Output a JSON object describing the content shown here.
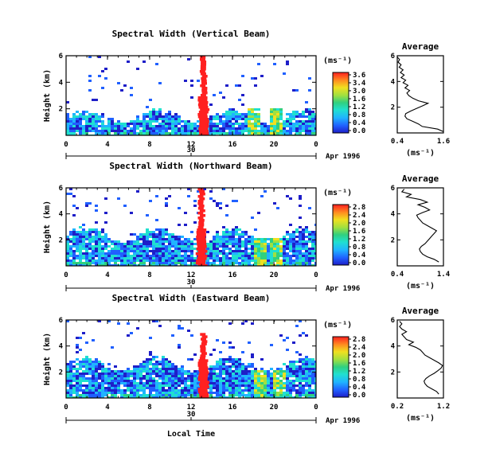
{
  "chart_data": [
    {
      "type": "heatmap",
      "title": "Spectral Width (Vertical Beam)",
      "ylabel": "Height (km)",
      "xlim": [
        0,
        24
      ],
      "ylim": [
        0,
        6
      ],
      "x_ticks": [
        "0",
        "4",
        "8",
        "12",
        "16",
        "20",
        "0"
      ],
      "y_ticks": [
        "2",
        "4",
        "6"
      ],
      "date_tick": "30",
      "date_label": "Apr 1996",
      "colorbar": {
        "unit": "(ms⁻¹)",
        "ticks": [
          "3.6",
          "3.4",
          "3.0",
          "1.6",
          "1.2",
          "0.8",
          "0.4",
          "0.0"
        ]
      },
      "features": {
        "band_top": 1.5,
        "spike_x": 13.2,
        "spike_top": 6.0,
        "secondary_plumes": [
          17.8,
          20.0
        ]
      },
      "profile": {
        "title": "Average",
        "xlabel": "(ms⁻¹)",
        "xlim": [
          0.4,
          1.6
        ],
        "x_ticks": [
          "0.4",
          "1.6"
        ],
        "y_ticks": [
          "2",
          "4",
          "6"
        ],
        "points": [
          [
            1.6,
            0.1
          ],
          [
            1.45,
            0.3
          ],
          [
            1.05,
            0.5
          ],
          [
            0.95,
            0.7
          ],
          [
            0.8,
            0.9
          ],
          [
            0.65,
            1.1
          ],
          [
            0.6,
            1.3
          ],
          [
            0.62,
            1.5
          ],
          [
            0.75,
            1.7
          ],
          [
            0.9,
            1.9
          ],
          [
            1.05,
            2.1
          ],
          [
            1.2,
            2.3
          ],
          [
            0.95,
            2.5
          ],
          [
            0.8,
            2.7
          ],
          [
            0.7,
            2.9
          ],
          [
            0.65,
            3.1
          ],
          [
            0.72,
            3.3
          ],
          [
            0.6,
            3.5
          ],
          [
            0.68,
            3.7
          ],
          [
            0.55,
            3.9
          ],
          [
            0.62,
            4.1
          ],
          [
            0.5,
            4.3
          ],
          [
            0.58,
            4.5
          ],
          [
            0.48,
            4.7
          ],
          [
            0.55,
            4.9
          ],
          [
            0.45,
            5.1
          ],
          [
            0.5,
            5.3
          ],
          [
            0.42,
            5.5
          ],
          [
            0.46,
            5.7
          ],
          [
            0.4,
            5.9
          ]
        ]
      }
    },
    {
      "type": "heatmap",
      "title": "Spectral Width (Northward Beam)",
      "ylabel": "Height (km)",
      "xlim": [
        0,
        24
      ],
      "ylim": [
        0,
        6
      ],
      "x_ticks": [
        "0",
        "4",
        "8",
        "12",
        "16",
        "20",
        "0"
      ],
      "y_ticks": [
        "2",
        "4",
        "6"
      ],
      "date_tick": "30",
      "date_label": "Apr 1996",
      "colorbar": {
        "unit": "(ms⁻¹)",
        "ticks": [
          "2.8",
          "2.4",
          "2.0",
          "1.6",
          "1.2",
          "0.8",
          "0.4",
          "0.0"
        ]
      },
      "features": {
        "band_top": 2.5,
        "spike_x": 13.0,
        "spike_top": 6.0,
        "secondary_plumes": [
          18.5,
          20.0
        ]
      },
      "profile": {
        "title": "Average",
        "xlabel": "(ms⁻¹)",
        "xlim": [
          0.4,
          1.4
        ],
        "x_ticks": [
          "0.4",
          "1.4"
        ],
        "y_ticks": [
          "2",
          "4",
          "6"
        ],
        "points": [
          [
            1.3,
            0.3
          ],
          [
            1.2,
            0.5
          ],
          [
            1.05,
            0.7
          ],
          [
            0.95,
            0.9
          ],
          [
            0.9,
            1.1
          ],
          [
            0.88,
            1.3
          ],
          [
            0.92,
            1.5
          ],
          [
            1.0,
            1.7
          ],
          [
            1.05,
            1.9
          ],
          [
            1.1,
            2.1
          ],
          [
            1.15,
            2.3
          ],
          [
            1.2,
            2.5
          ],
          [
            1.25,
            2.7
          ],
          [
            1.15,
            2.9
          ],
          [
            1.05,
            3.1
          ],
          [
            0.95,
            3.3
          ],
          [
            0.9,
            3.5
          ],
          [
            0.85,
            3.7
          ],
          [
            0.82,
            3.9
          ],
          [
            0.95,
            4.1
          ],
          [
            1.1,
            4.3
          ],
          [
            1.0,
            4.5
          ],
          [
            0.85,
            4.7
          ],
          [
            1.05,
            4.9
          ],
          [
            0.9,
            5.1
          ],
          [
            0.6,
            5.3
          ],
          [
            0.7,
            5.5
          ],
          [
            0.5,
            5.7
          ],
          [
            0.55,
            5.9
          ]
        ]
      }
    },
    {
      "type": "heatmap",
      "title": "Spectral Width (Eastward Beam)",
      "ylabel": "Height (km)",
      "xlabel": "Local Time",
      "xlim": [
        0,
        24
      ],
      "ylim": [
        0,
        6
      ],
      "x_ticks": [
        "0",
        "4",
        "8",
        "12",
        "16",
        "20",
        "0"
      ],
      "y_ticks": [
        "2",
        "4",
        "6"
      ],
      "date_tick": "30",
      "date_label": "Apr 1996",
      "colorbar": {
        "unit": "(ms⁻¹)",
        "ticks": [
          "2.8",
          "2.4",
          "2.0",
          "1.6",
          "1.2",
          "0.8",
          "0.4",
          "0.0"
        ]
      },
      "features": {
        "band_top": 2.7,
        "spike_x": 13.2,
        "spike_top": 5.0,
        "secondary_plumes": [
          18.5,
          20.3
        ]
      },
      "profile": {
        "title": "Average",
        "xlabel": "(ms⁻¹)",
        "xlim": [
          0.2,
          1.2
        ],
        "x_ticks": [
          "0.2",
          "1.2"
        ],
        "y_ticks": [
          "2",
          "4",
          "6"
        ],
        "points": [
          [
            1.1,
            0.3
          ],
          [
            1.05,
            0.5
          ],
          [
            0.95,
            0.7
          ],
          [
            0.85,
            0.9
          ],
          [
            0.8,
            1.1
          ],
          [
            0.78,
            1.3
          ],
          [
            0.82,
            1.5
          ],
          [
            0.9,
            1.7
          ],
          [
            1.0,
            1.9
          ],
          [
            1.08,
            2.1
          ],
          [
            1.15,
            2.3
          ],
          [
            1.18,
            2.5
          ],
          [
            1.1,
            2.7
          ],
          [
            1.0,
            2.9
          ],
          [
            0.9,
            3.1
          ],
          [
            0.8,
            3.3
          ],
          [
            0.75,
            3.5
          ],
          [
            0.7,
            3.7
          ],
          [
            0.6,
            3.9
          ],
          [
            0.45,
            4.1
          ],
          [
            0.55,
            4.3
          ],
          [
            0.4,
            4.5
          ],
          [
            0.35,
            4.7
          ],
          [
            0.3,
            4.9
          ],
          [
            0.4,
            5.1
          ],
          [
            0.3,
            5.3
          ],
          [
            0.25,
            5.5
          ],
          [
            0.3,
            5.7
          ],
          [
            0.25,
            5.9
          ]
        ]
      }
    }
  ]
}
